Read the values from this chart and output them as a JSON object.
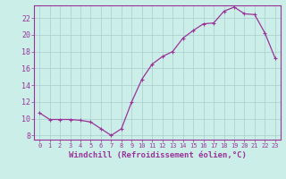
{
  "x": [
    0,
    1,
    2,
    3,
    4,
    5,
    6,
    7,
    8,
    9,
    10,
    11,
    12,
    13,
    14,
    15,
    16,
    17,
    18,
    19,
    20,
    21,
    22,
    23
  ],
  "y": [
    10.7,
    9.9,
    9.9,
    9.9,
    9.8,
    9.6,
    8.8,
    8.0,
    8.8,
    12.0,
    14.7,
    16.5,
    17.4,
    18.0,
    19.6,
    20.5,
    21.3,
    21.4,
    22.8,
    23.3,
    22.5,
    22.4,
    20.2,
    17.2
  ],
  "line_color": "#993399",
  "marker": "+",
  "bg_color": "#cceee8",
  "grid_color": "#aacccc",
  "xlabel": "Windchill (Refroidissement éolien,°C)",
  "yticks": [
    8,
    10,
    12,
    14,
    16,
    18,
    20,
    22
  ],
  "xticks": [
    0,
    1,
    2,
    3,
    4,
    5,
    6,
    7,
    8,
    9,
    10,
    11,
    12,
    13,
    14,
    15,
    16,
    17,
    18,
    19,
    20,
    21,
    22,
    23
  ],
  "xlim": [
    -0.5,
    23.5
  ],
  "ylim": [
    7.5,
    23.5
  ],
  "axis_color": "#993399",
  "tick_color": "#993399",
  "label_color": "#993399",
  "markersize": 3,
  "linewidth": 0.9,
  "xlabel_fontsize": 6.5,
  "xtick_fontsize": 5.0,
  "ytick_fontsize": 6.0
}
